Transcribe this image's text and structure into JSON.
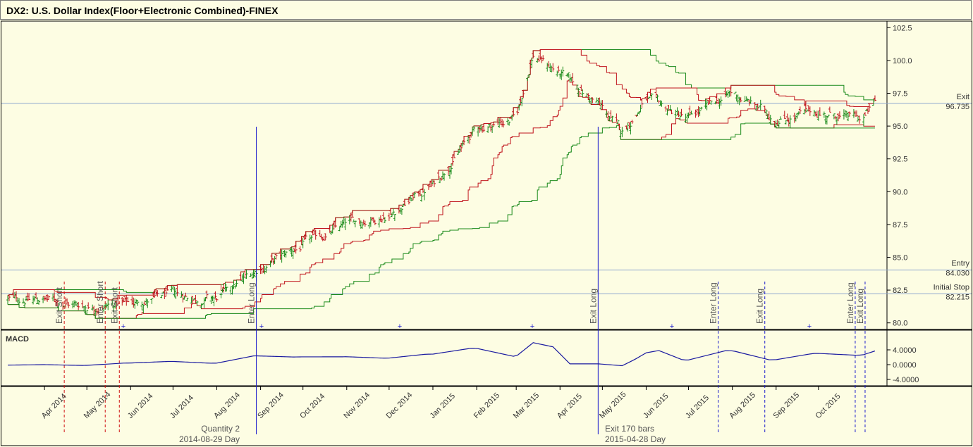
{
  "title": "DX2: U.S. Dollar Index(Floor+Electronic Combined)-FINEX",
  "indicator_label": "MACD",
  "colors": {
    "background": "#fdfde3",
    "up_bar": "#1a8a1a",
    "down_bar": "#c0141c",
    "upper_channel": "#c0141c",
    "lower_channel": "#1a8a1a",
    "long_stop": "#c0141c",
    "signal_line": "#1a1aa0",
    "macd": "#1a1aa0",
    "refline": "#8fa8d0"
  },
  "price_axis": {
    "min": 79.5,
    "max": 103,
    "ticks": [
      "102.5",
      "100.0",
      "97.5",
      "95.0",
      "92.5",
      "90.0",
      "87.5",
      "85.0",
      "82.5",
      "80.0"
    ]
  },
  "macd_axis": {
    "ticks": [
      "4.0000",
      "0.0000",
      "-4.0000"
    ]
  },
  "ref_lines": [
    {
      "name": "Exit",
      "value": "96.735"
    },
    {
      "name": "Entry",
      "value": "84.030"
    },
    {
      "name": "Initial Stop",
      "value": "82.215"
    }
  ],
  "months": [
    "Apr 2014",
    "May 2014",
    "Jun 2014",
    "Jul 2014",
    "Aug 2014",
    "Sep 2014",
    "Oct 2014",
    "Nov 2014",
    "Dec 2014",
    "Jan 2015",
    "Feb 2015",
    "Mar 2015",
    "Apr 2015",
    "May 2015",
    "Jun 2015",
    "Jul 2015",
    "Aug 2015",
    "Sep 2015",
    "Oct 2015"
  ],
  "signals": [
    {
      "label": "Exit Short",
      "color": "red"
    },
    {
      "label": "Enter Short",
      "color": "red"
    },
    {
      "label": "Exit Short",
      "color": "red"
    },
    {
      "label": "Enter Long",
      "color": "blue"
    },
    {
      "label": "Exit Long",
      "color": "blue"
    },
    {
      "label": "Enter Long",
      "color": "blue"
    },
    {
      "label": "Exit Long",
      "color": "blue"
    },
    {
      "label": "Enter Long",
      "color": "blue"
    },
    {
      "label": "Exit Long",
      "color": "blue"
    }
  ],
  "trade_notes": [
    {
      "line1": "Quantity 2",
      "line2": "2014-08-29 Day"
    },
    {
      "line1": "Exit 170 bars",
      "line2": "2015-04-28 Day"
    }
  ],
  "chart_data": {
    "type": "line",
    "title": "DX2: U.S. Dollar Index(Floor+Electronic Combined)-FINEX",
    "series": [
      {
        "x": [
          "2014-04-01",
          "2014-05-01",
          "2014-06-01",
          "2014-07-01",
          "2014-08-01",
          "2014-08-29",
          "2014-10-01",
          "2014-11-01",
          "2014-12-01",
          "2015-01-01",
          "2015-02-01",
          "2015-03-01",
          "2015-03-13",
          "2015-04-01",
          "2015-04-28",
          "2015-05-15",
          "2015-06-01",
          "2015-07-01",
          "2015-08-01",
          "2015-09-01",
          "2015-10-01",
          "2015-11-01",
          "2015-11-10"
        ],
        "values": [
          81.8,
          81.3,
          81.5,
          82.1,
          81.8,
          84.0,
          85.9,
          87.5,
          88.3,
          90.5,
          94.8,
          95.6,
          100.5,
          99.0,
          96.7,
          94.5,
          97.0,
          95.5,
          97.5,
          95.6,
          96.0,
          95.5,
          96.7
        ]
      }
    ],
    "ylim": [
      79.5,
      103
    ]
  }
}
